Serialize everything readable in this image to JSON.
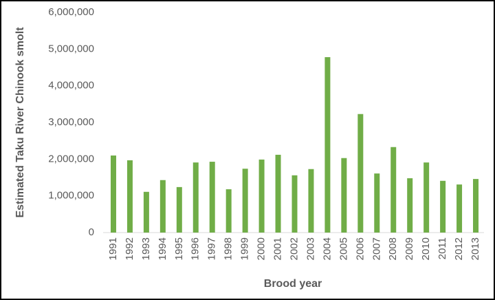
{
  "chart_data": {
    "type": "bar",
    "y_label": "Estimated Taku River Chinook smolt",
    "x_label": "Brood year",
    "categories": [
      "1991",
      "1992",
      "1993",
      "1994",
      "1995",
      "1996",
      "1997",
      "1998",
      "1999",
      "2000",
      "2001",
      "2002",
      "2003",
      "2004",
      "2005",
      "2006",
      "2007",
      "2008",
      "2009",
      "2010",
      "2011",
      "2012",
      "2013"
    ],
    "values": [
      2100000,
      1970000,
      1110000,
      1430000,
      1240000,
      1910000,
      1930000,
      1180000,
      1740000,
      1990000,
      2120000,
      1560000,
      1730000,
      4780000,
      2030000,
      3230000,
      1610000,
      2330000,
      1480000,
      1910000,
      1410000,
      1310000,
      1460000
    ],
    "color": "#70ad47",
    "ylim": [
      0,
      6000000
    ],
    "yticks": [
      0,
      {
        "value": 1000000,
        "label": "1,000,000"
      },
      {
        "value": 2000000,
        "label": "2,000,000"
      },
      {
        "value": 3000000,
        "label": "3,000,000"
      },
      {
        "value": 4000000,
        "label": "4,000,000"
      },
      {
        "value": 5000000,
        "label": "5,000,000"
      },
      {
        "value": 6000000,
        "label": "6,000,000"
      }
    ],
    "grid": false
  }
}
